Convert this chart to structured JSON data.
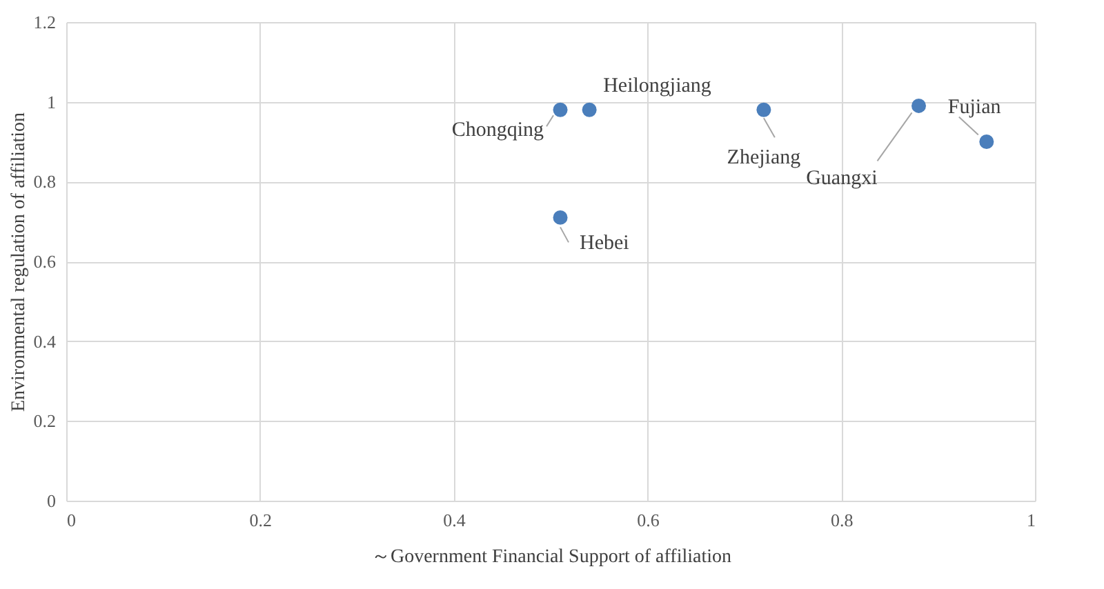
{
  "chart_data": {
    "type": "scatter",
    "xlabel": "～Government Financial  Support of affiliation",
    "ylabel": "Environmental  regulation  of affiliation",
    "x": [
      0.51,
      0.54,
      0.72,
      0.88,
      0.95,
      0.51
    ],
    "series": [
      {
        "color": "#4a7ebb",
        "values": [
          0.98,
          0.98,
          0.98,
          0.99,
          0.9,
          0.71
        ]
      }
    ],
    "annotations": [
      {
        "text": "Chongqing",
        "x": 0.51,
        "y": 0.98
      },
      {
        "text": "Heilongjiang",
        "x": 0.54,
        "y": 0.98
      },
      {
        "text": "Zhejiang",
        "x": 0.72,
        "y": 0.98
      },
      {
        "text": "Guangxi",
        "x": 0.88,
        "y": 0.99
      },
      {
        "text": "Fujian",
        "x": 0.95,
        "y": 0.9
      },
      {
        "text": "Hebei",
        "x": 0.51,
        "y": 0.71
      }
    ],
    "xlim": [
      0,
      1
    ],
    "xticks": [
      0,
      0.2,
      0.4,
      0.6,
      0.8,
      1
    ],
    "ylim": [
      0,
      1.2
    ],
    "yticks": [
      0,
      0.2,
      0.4,
      0.6,
      0.8,
      1,
      1.2
    ],
    "grid": true,
    "marker": "circle"
  }
}
